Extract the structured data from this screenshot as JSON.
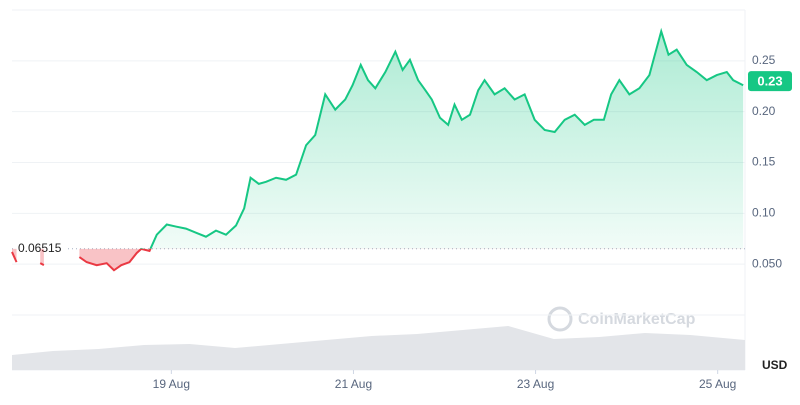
{
  "chart_data": {
    "type": "line",
    "x": [
      17.25,
      17.3,
      17.45,
      17.56,
      17.6,
      17.8,
      17.99,
      18.07,
      18.18,
      18.29,
      18.37,
      18.45,
      18.54,
      18.62,
      18.67,
      18.76,
      18.84,
      18.95,
      19.05,
      19.16,
      19.27,
      19.38,
      19.49,
      19.6,
      19.71,
      19.8,
      19.87,
      19.96,
      20.04,
      20.15,
      20.26,
      20.37,
      20.48,
      20.58,
      20.69,
      20.8,
      20.91,
      20.99,
      21.08,
      21.16,
      21.24,
      21.35,
      21.46,
      21.54,
      21.62,
      21.71,
      21.79,
      21.86,
      21.95,
      22.04,
      22.11,
      22.19,
      22.28,
      22.37,
      22.44,
      22.55,
      22.66,
      22.77,
      22.88,
      22.99,
      23.1,
      23.21,
      23.32,
      23.43,
      23.54,
      23.64,
      23.75,
      23.83,
      23.92,
      24.03,
      24.14,
      24.25,
      24.31,
      24.38,
      24.46,
      24.55,
      24.66,
      24.77,
      24.88,
      24.99,
      25.1,
      25.17,
      25.28
    ],
    "series": [
      {
        "color": "#16c784",
        "down_color": "#ea3943",
        "values": [
          0.062,
          0.052,
          null,
          0.051,
          0.049,
          null,
          0.057,
          0.052,
          0.049,
          0.051,
          0.044,
          0.049,
          0.052,
          0.061,
          0.065,
          0.063,
          0.079,
          0.089,
          0.087,
          0.085,
          0.081,
          0.077,
          0.083,
          0.079,
          0.088,
          0.105,
          0.135,
          0.129,
          0.131,
          0.135,
          0.133,
          0.138,
          0.167,
          0.177,
          0.217,
          0.202,
          0.212,
          0.226,
          0.246,
          0.231,
          0.223,
          0.239,
          0.259,
          0.241,
          0.251,
          0.231,
          0.221,
          0.212,
          0.194,
          0.187,
          0.207,
          0.192,
          0.197,
          0.221,
          0.231,
          0.217,
          0.223,
          0.212,
          0.217,
          0.192,
          0.182,
          0.18,
          0.192,
          0.197,
          0.187,
          0.192,
          0.192,
          0.217,
          0.231,
          0.217,
          0.223,
          0.236,
          0.256,
          0.279,
          0.256,
          0.261,
          0.246,
          0.239,
          0.231,
          0.236,
          0.239,
          0.231,
          0.226
        ]
      }
    ],
    "baseline": 0.06515,
    "current_price": 0.23,
    "xlim": [
      17.25,
      25.3
    ],
    "xticks": [
      {
        "value": 19,
        "label": "19 Aug"
      },
      {
        "value": 21,
        "label": "21 Aug"
      },
      {
        "value": 23,
        "label": "23 Aug"
      },
      {
        "value": 25,
        "label": "25 Aug"
      }
    ],
    "ylim": [
      0,
      0.3
    ],
    "yticks": [
      {
        "value": 0.05,
        "label": "0.050"
      },
      {
        "value": 0.1,
        "label": "0.10"
      },
      0.15,
      {
        "value": 0.2,
        "label": "0.20"
      },
      0.25
    ],
    "grid": true,
    "currency": "USD",
    "watermark": "CoinMarketCap",
    "volume": {
      "color": "#e3e5e9",
      "x": [
        17.25,
        17.7,
        18.2,
        18.7,
        19.2,
        19.7,
        20.2,
        20.7,
        21.2,
        21.7,
        22.2,
        22.7,
        23.2,
        23.7,
        24.2,
        24.7,
        25.3
      ],
      "values": [
        30,
        38,
        42,
        50,
        52,
        44,
        52,
        60,
        68,
        72,
        80,
        88,
        62,
        66,
        74,
        70,
        60
      ],
      "lim": [
        0,
        100
      ]
    }
  }
}
